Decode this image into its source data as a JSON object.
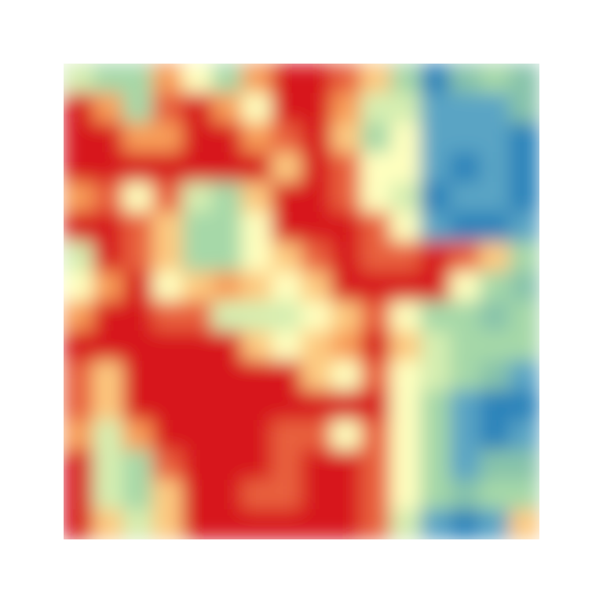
{
  "chart_data": {
    "type": "heatmap",
    "colors": [
      "#d7191c",
      "#e8603c",
      "#f89d59",
      "#fdc980",
      "#ffffbf",
      "#d5eeb1",
      "#a6d8a8",
      "#87c3aa",
      "#5aa4c4",
      "#2b83ba"
    ],
    "z": [
      [
        5,
        6,
        6,
        2,
        4,
        6,
        2,
        0,
        0,
        1,
        3,
        6,
        9,
        7,
        6,
        7
      ],
      [
        0,
        2,
        6,
        1,
        0,
        2,
        4,
        0,
        0,
        2,
        5,
        5,
        8,
        8,
        8,
        7
      ],
      [
        0,
        0,
        2,
        2,
        0,
        0,
        2,
        1,
        0,
        3,
        6,
        4,
        8,
        8,
        8,
        9
      ],
      [
        0,
        0,
        0,
        0,
        0,
        0,
        0,
        3,
        0,
        1,
        4,
        4,
        8,
        9,
        8,
        9
      ],
      [
        2,
        1,
        4,
        1,
        5,
        6,
        3,
        0,
        0,
        1,
        4,
        5,
        9,
        8,
        8,
        9
      ],
      [
        0,
        0,
        1,
        3,
        6,
        6,
        4,
        0,
        0,
        0,
        1,
        4,
        8,
        9,
        9,
        8
      ],
      [
        5,
        0,
        1,
        3,
        6,
        6,
        4,
        3,
        1,
        0,
        1,
        1,
        0,
        1,
        3,
        6
      ],
      [
        4,
        2,
        0,
        4,
        3,
        2,
        3,
        4,
        3,
        0,
        0,
        0,
        0,
        4,
        6,
        7
      ],
      [
        2,
        0,
        0,
        1,
        1,
        5,
        5,
        5,
        4,
        3,
        1,
        4,
        6,
        6,
        7,
        6
      ],
      [
        0,
        0,
        0,
        0,
        0,
        0,
        3,
        4,
        3,
        2,
        0,
        3,
        5,
        6,
        6,
        6
      ],
      [
        1,
        3,
        0,
        0,
        0,
        0,
        0,
        0,
        3,
        4,
        1,
        4,
        5,
        6,
        7,
        8
      ],
      [
        1,
        3,
        0,
        0,
        0,
        0,
        0,
        0,
        0,
        0,
        0,
        4,
        6,
        8,
        9,
        9
      ],
      [
        2,
        5,
        2,
        0,
        0,
        0,
        0,
        1,
        1,
        4,
        1,
        4,
        6,
        8,
        9,
        8
      ],
      [
        0,
        5,
        6,
        1,
        0,
        0,
        0,
        1,
        0,
        0,
        1,
        4,
        6,
        8,
        7,
        7
      ],
      [
        0,
        5,
        6,
        3,
        0,
        0,
        1,
        1,
        0,
        0,
        1,
        4,
        6,
        7,
        6,
        6
      ],
      [
        0,
        3,
        5,
        3,
        0,
        0,
        0,
        0,
        0,
        0,
        1,
        5,
        8,
        9,
        8,
        3
      ]
    ]
  }
}
